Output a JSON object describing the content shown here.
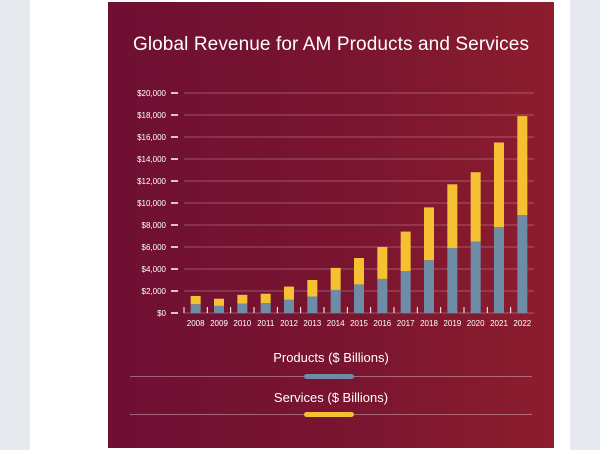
{
  "chart_data": {
    "type": "bar",
    "stacked": true,
    "title": "Global Revenue for AM Products and Services",
    "categories": [
      "2008",
      "2009",
      "2010",
      "2011",
      "2012",
      "2013",
      "2014",
      "2015",
      "2016",
      "2017",
      "2018",
      "2019",
      "2020",
      "2021",
      "2022"
    ],
    "series": [
      {
        "name": "Products ($ Billions)",
        "color": "#6f8ca6",
        "values": [
          800,
          650,
          850,
          900,
          1200,
          1500,
          2100,
          2600,
          3100,
          3800,
          4800,
          5900,
          6500,
          7800,
          8900
        ]
      },
      {
        "name": "Services ($ Billions)",
        "color": "#f5c133",
        "values": [
          750,
          650,
          800,
          850,
          1200,
          1500,
          2000,
          2400,
          2900,
          3600,
          4800,
          5800,
          6300,
          7700,
          9000
        ]
      }
    ],
    "yticks": [
      "$0",
      "$2,000",
      "$4,000",
      "$6,000",
      "$8,000",
      "$10,000",
      "$12,000",
      "$14,000",
      "$16,000",
      "$18,000",
      "$20,000"
    ],
    "ylim": [
      0,
      20000
    ],
    "grid": true,
    "legend_position": "bottom"
  }
}
